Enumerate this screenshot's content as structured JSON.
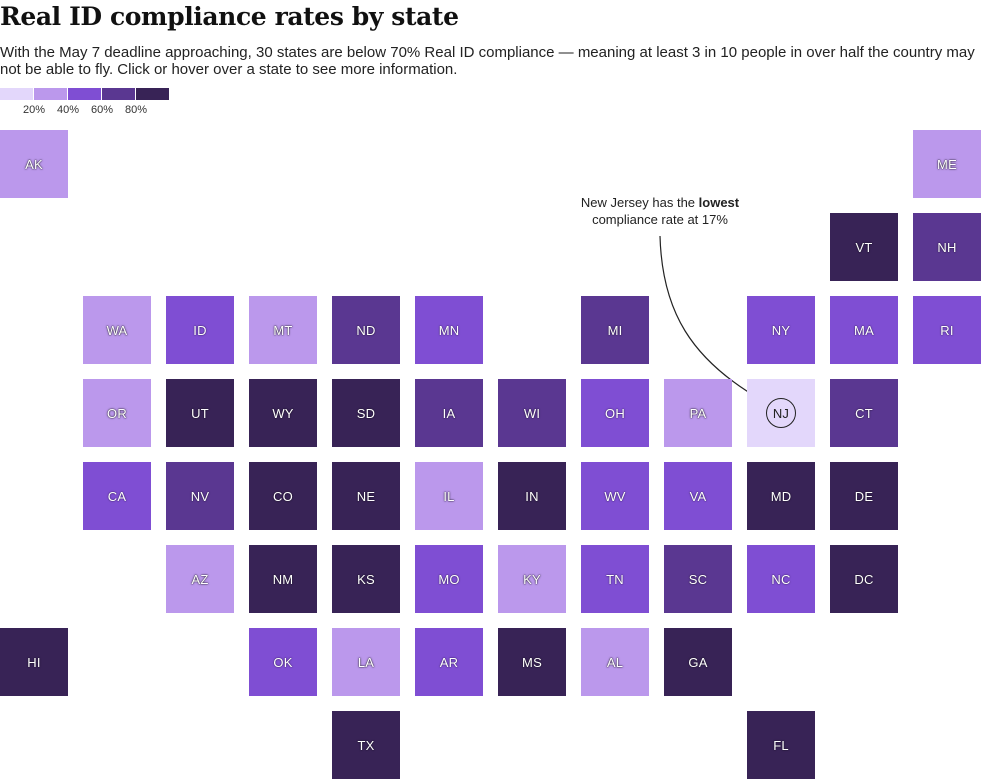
{
  "header": {
    "title": "Real ID compliance rates by state",
    "subtitle": "With the May 7 deadline approaching, 30 states are below 70% Real ID compliance — meaning at least 3 in 10 people in over half the country may not be able to fly. Click or hover over a state to see more information."
  },
  "legend": {
    "bins": [
      {
        "color": "#e3d7fb"
      },
      {
        "color": "#bb98ec"
      },
      {
        "color": "#7f4ed3"
      },
      {
        "color": "#5a3791"
      },
      {
        "color": "#382356"
      }
    ],
    "labels": [
      "20%",
      "40%",
      "60%",
      "80%"
    ]
  },
  "annotation": {
    "prefix": "New Jersey has the ",
    "bold": "lowest",
    "suffix": "compliance rate at 17%"
  },
  "states": [
    {
      "abbr": "AK",
      "col": 0,
      "row": 0,
      "bin": 1
    },
    {
      "abbr": "ME",
      "col": 11,
      "row": 0,
      "bin": 1
    },
    {
      "abbr": "VT",
      "col": 10,
      "row": 1,
      "bin": 4
    },
    {
      "abbr": "NH",
      "col": 11,
      "row": 1,
      "bin": 3
    },
    {
      "abbr": "WA",
      "col": 1,
      "row": 2,
      "bin": 1
    },
    {
      "abbr": "ID",
      "col": 2,
      "row": 2,
      "bin": 2
    },
    {
      "abbr": "MT",
      "col": 3,
      "row": 2,
      "bin": 1
    },
    {
      "abbr": "ND",
      "col": 4,
      "row": 2,
      "bin": 3
    },
    {
      "abbr": "MN",
      "col": 5,
      "row": 2,
      "bin": 2
    },
    {
      "abbr": "MI",
      "col": 7,
      "row": 2,
      "bin": 3
    },
    {
      "abbr": "NY",
      "col": 9,
      "row": 2,
      "bin": 2
    },
    {
      "abbr": "MA",
      "col": 10,
      "row": 2,
      "bin": 2
    },
    {
      "abbr": "RI",
      "col": 11,
      "row": 2,
      "bin": 2
    },
    {
      "abbr": "OR",
      "col": 1,
      "row": 3,
      "bin": 1
    },
    {
      "abbr": "UT",
      "col": 2,
      "row": 3,
      "bin": 4
    },
    {
      "abbr": "WY",
      "col": 3,
      "row": 3,
      "bin": 4
    },
    {
      "abbr": "SD",
      "col": 4,
      "row": 3,
      "bin": 4
    },
    {
      "abbr": "IA",
      "col": 5,
      "row": 3,
      "bin": 3
    },
    {
      "abbr": "WI",
      "col": 6,
      "row": 3,
      "bin": 3
    },
    {
      "abbr": "OH",
      "col": 7,
      "row": 3,
      "bin": 2
    },
    {
      "abbr": "PA",
      "col": 8,
      "row": 3,
      "bin": 1
    },
    {
      "abbr": "NJ",
      "col": 9,
      "row": 3,
      "bin": 0,
      "highlight": true
    },
    {
      "abbr": "CT",
      "col": 10,
      "row": 3,
      "bin": 3
    },
    {
      "abbr": "CA",
      "col": 1,
      "row": 4,
      "bin": 2
    },
    {
      "abbr": "NV",
      "col": 2,
      "row": 4,
      "bin": 3
    },
    {
      "abbr": "CO",
      "col": 3,
      "row": 4,
      "bin": 4
    },
    {
      "abbr": "NE",
      "col": 4,
      "row": 4,
      "bin": 4
    },
    {
      "abbr": "IL",
      "col": 5,
      "row": 4,
      "bin": 1
    },
    {
      "abbr": "IN",
      "col": 6,
      "row": 4,
      "bin": 4
    },
    {
      "abbr": "WV",
      "col": 7,
      "row": 4,
      "bin": 2
    },
    {
      "abbr": "VA",
      "col": 8,
      "row": 4,
      "bin": 2
    },
    {
      "abbr": "MD",
      "col": 9,
      "row": 4,
      "bin": 4
    },
    {
      "abbr": "DE",
      "col": 10,
      "row": 4,
      "bin": 4
    },
    {
      "abbr": "AZ",
      "col": 2,
      "row": 5,
      "bin": 1
    },
    {
      "abbr": "NM",
      "col": 3,
      "row": 5,
      "bin": 4
    },
    {
      "abbr": "KS",
      "col": 4,
      "row": 5,
      "bin": 4
    },
    {
      "abbr": "MO",
      "col": 5,
      "row": 5,
      "bin": 2
    },
    {
      "abbr": "KY",
      "col": 6,
      "row": 5,
      "bin": 1
    },
    {
      "abbr": "TN",
      "col": 7,
      "row": 5,
      "bin": 2
    },
    {
      "abbr": "SC",
      "col": 8,
      "row": 5,
      "bin": 3
    },
    {
      "abbr": "NC",
      "col": 9,
      "row": 5,
      "bin": 2
    },
    {
      "abbr": "DC",
      "col": 10,
      "row": 5,
      "bin": 4
    },
    {
      "abbr": "HI",
      "col": 0,
      "row": 6,
      "bin": 4
    },
    {
      "abbr": "OK",
      "col": 3,
      "row": 6,
      "bin": 2
    },
    {
      "abbr": "LA",
      "col": 4,
      "row": 6,
      "bin": 1
    },
    {
      "abbr": "AR",
      "col": 5,
      "row": 6,
      "bin": 2
    },
    {
      "abbr": "MS",
      "col": 6,
      "row": 6,
      "bin": 4
    },
    {
      "abbr": "AL",
      "col": 7,
      "row": 6,
      "bin": 1
    },
    {
      "abbr": "GA",
      "col": 8,
      "row": 6,
      "bin": 4
    },
    {
      "abbr": "TX",
      "col": 4,
      "row": 7,
      "bin": 4
    },
    {
      "abbr": "FL",
      "col": 9,
      "row": 7,
      "bin": 4
    }
  ]
}
